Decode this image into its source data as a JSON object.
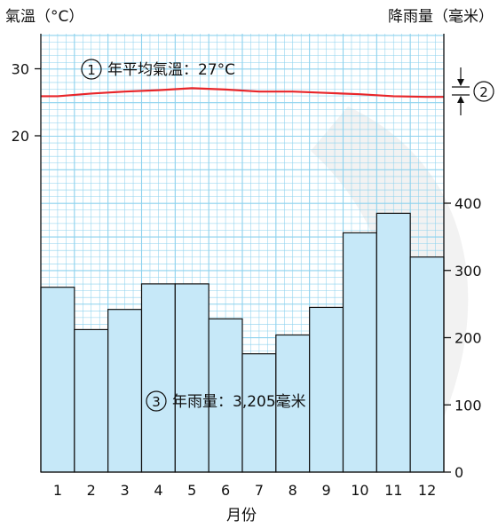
{
  "chart_data": {
    "type": "bar+line",
    "left_axis_label": "氣溫（°C）",
    "right_axis_label": "降雨量（毫米）",
    "xlabel": "月份",
    "categories": [
      "1",
      "2",
      "3",
      "4",
      "5",
      "6",
      "7",
      "8",
      "9",
      "10",
      "11",
      "12"
    ],
    "temperature": {
      "values": [
        25.9,
        26.3,
        26.6,
        26.8,
        27.1,
        26.9,
        26.6,
        26.6,
        26.4,
        26.2,
        25.9,
        25.8
      ],
      "ticks": [
        "30",
        "20"
      ],
      "tick_values": [
        30,
        20
      ],
      "color": "#e8262a"
    },
    "rainfall": {
      "values": [
        275,
        212,
        242,
        280,
        280,
        228,
        176,
        204,
        245,
        356,
        385,
        320
      ],
      "ticks": [
        "400",
        "300",
        "200",
        "100",
        "0"
      ],
      "tick_values": [
        400,
        300,
        200,
        100,
        0
      ],
      "ylim": [
        0,
        400
      ],
      "bar_color": "#c6e8f8",
      "bar_edge": "#111111"
    },
    "annotations": {
      "mean_temp": {
        "marker": "①",
        "text": "年平均氣溫：27°C"
      },
      "range_marker": "②",
      "annual_rain": {
        "marker": "③",
        "text": "年雨量：3,205毫米"
      }
    },
    "grid": true,
    "grid_color": "#8dd2ee"
  }
}
